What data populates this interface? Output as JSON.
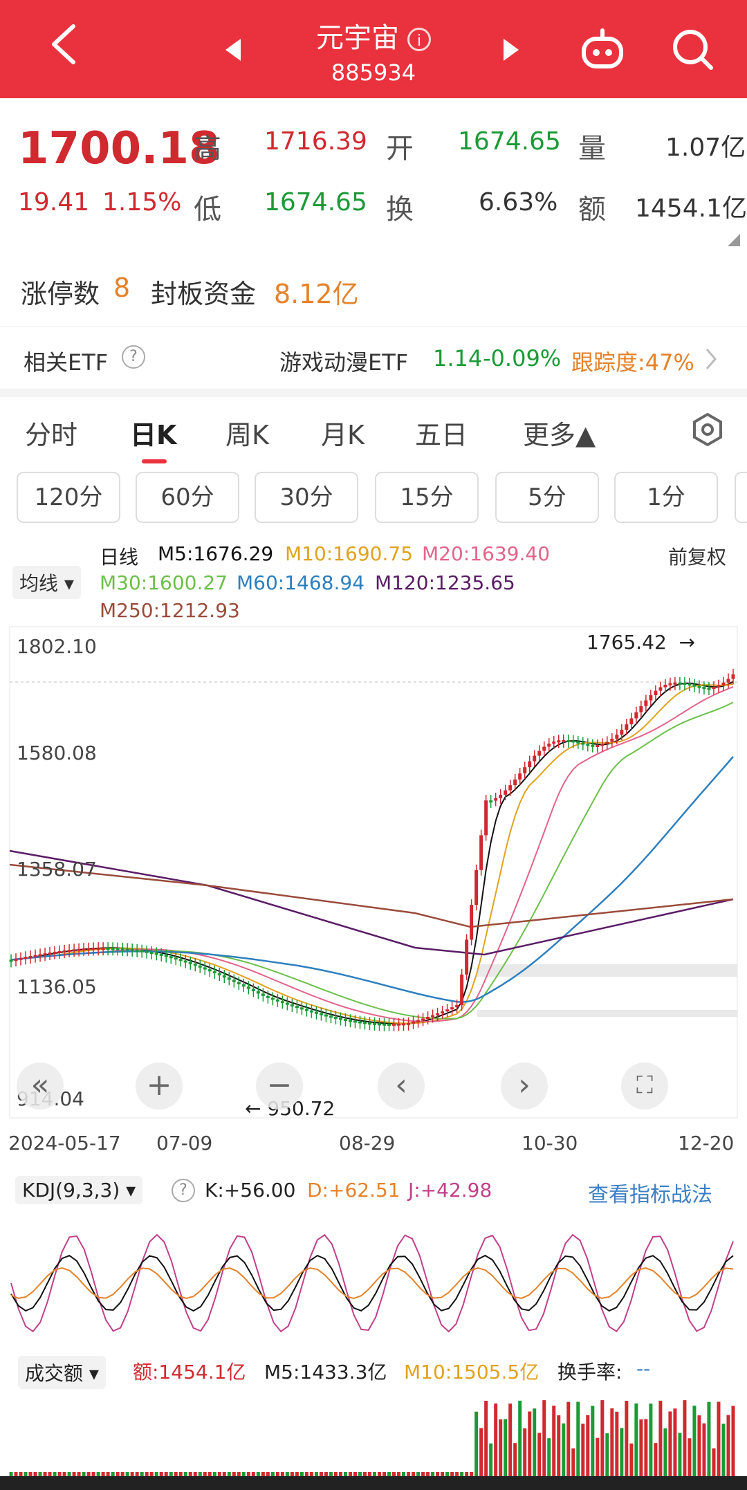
{
  "header": {
    "title": "元宇宙",
    "code": "885934",
    "info_glyph": "i"
  },
  "quote": {
    "price": "1700.18",
    "change": "19.41",
    "change_pct": "1.15%",
    "high_label": "高",
    "high": "1716.39",
    "low_label": "低",
    "low": "1674.65",
    "open_label": "开",
    "open": "1674.65",
    "turnover_label": "换",
    "turnover": "6.63%",
    "volume_label": "量",
    "volume": "1.07亿",
    "amount_label": "额",
    "amount": "1454.1亿",
    "limit_up_label": "涨停数",
    "limit_up": "8",
    "seal_label": "封板资金",
    "seal": "8.12亿"
  },
  "etf": {
    "label": "相关ETF",
    "help": "?",
    "name": "游戏动漫ETF",
    "price": "1.14",
    "change": "-0.09%",
    "tracking": "跟踪度:47%"
  },
  "tabs": [
    "分时",
    "日K",
    "周K",
    "月K",
    "五日",
    "更多▲"
  ],
  "periods": [
    "120分",
    "60分",
    "30分",
    "15分",
    "5分",
    "1分"
  ],
  "ma": {
    "type": "日线",
    "selector": "均线",
    "adjust": "前复权",
    "m5": "M5:1676.29",
    "m10": "M10:1690.75",
    "m20": "M20:1639.40",
    "m30": "M30:1600.27",
    "m60": "M60:1468.94",
    "m120": "M120:1235.65",
    "m250": "M250:1212.93"
  },
  "chart_data": {
    "type": "candlestick",
    "y_ticks": [
      "1802.10",
      "1580.08",
      "1358.07",
      "1136.05",
      "914.04"
    ],
    "x_ticks": [
      "2024-05-17",
      "07-09",
      "08-29",
      "10-30",
      "12-20"
    ],
    "high_marker": "1765.42",
    "low_marker": "950.72",
    "ylim": [
      914.04,
      1802.1
    ]
  },
  "kdj": {
    "selector": "KDJ(9,3,3)",
    "help": "?",
    "k": "K:+56.00",
    "d": "D:+62.51",
    "j": "J:+42.98",
    "link": "查看指标战法"
  },
  "volume": {
    "selector": "成交额",
    "amount": "额:1454.1亿",
    "m5": "M5:1433.3亿",
    "m10": "M10:1505.5亿",
    "turnover": "换手率:",
    "turnover_val": "--"
  },
  "colors": {
    "brand": "#e9323d",
    "up": "#d0292f",
    "down": "#1b9a36",
    "m5": "#111111",
    "m10": "#e0a21f",
    "m20": "#e2648b",
    "m30": "#6cbf4a",
    "m60": "#2e7fbf",
    "m120": "#5a1b66",
    "m250": "#9a4a3a"
  }
}
